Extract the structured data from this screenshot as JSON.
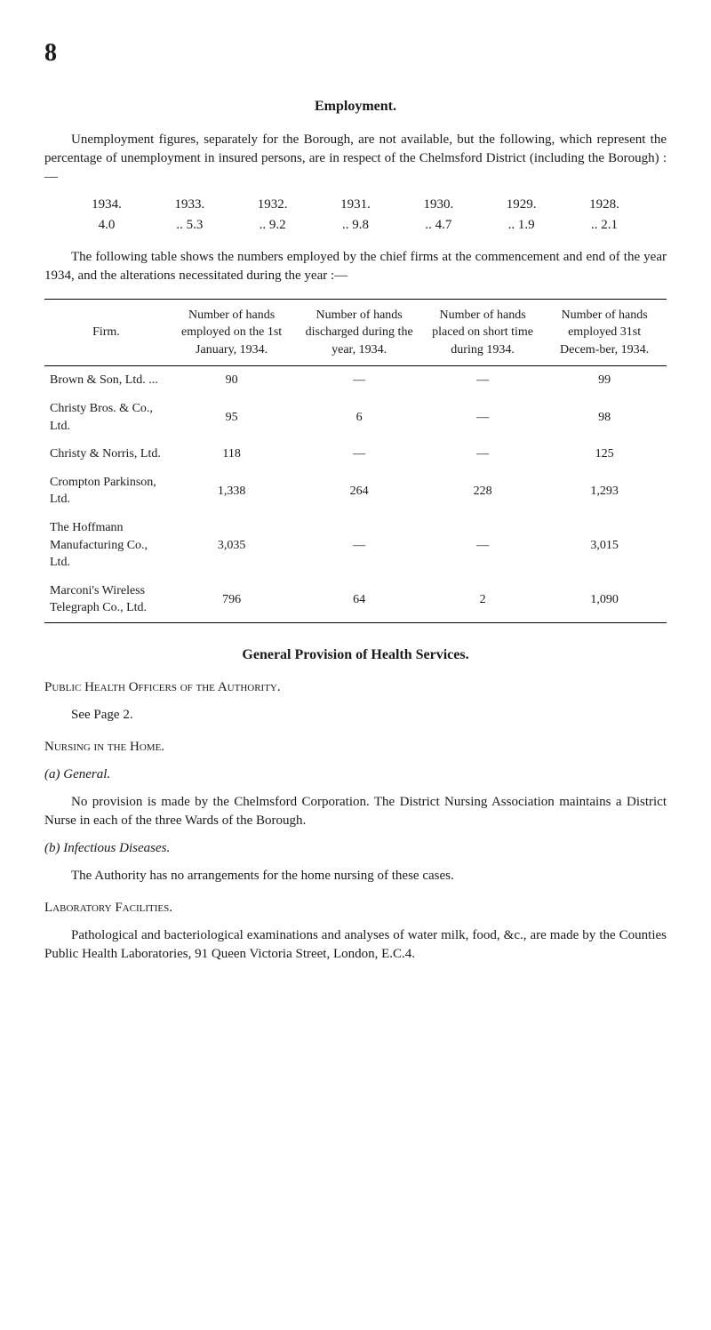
{
  "pageNumber": "8",
  "employment": {
    "title": "Employment.",
    "intro": "Unemployment figures, separately for the Borough, are not available, but the following, which represent the percentage of unemployment in insured persons, are in respect of the Chelmsford District (including the Borough) :—",
    "years": [
      "1934.",
      "1933.",
      "1932.",
      "1931.",
      "1930.",
      "1929.",
      "1928."
    ],
    "values": [
      "4.0",
      ".. 5.3",
      ".. 9.2",
      ".. 9.8",
      ".. 4.7",
      ".. 1.9",
      ".. 2.1"
    ],
    "tableIntro": "The following table shows the numbers employed by the chief firms at the commencement and end of the year 1934, and the alterations necessitated during the year :—",
    "table": {
      "headers": [
        "Firm.",
        "Number of hands employed on the 1st January, 1934.",
        "Number of hands discharged during the year, 1934.",
        "Number of hands placed on short time during 1934.",
        "Number of hands employed 31st Decem-ber, 1934."
      ],
      "rows": [
        [
          "Brown & Son, Ltd. ...",
          "90",
          "—",
          "—",
          "99"
        ],
        [
          "Christy Bros. & Co., Ltd.",
          "95",
          "6",
          "—",
          "98"
        ],
        [
          "Christy & Norris, Ltd.",
          "118",
          "—",
          "—",
          "125"
        ],
        [
          "Crompton Parkinson, Ltd.",
          "1,338",
          "264",
          "228",
          "1,293"
        ],
        [
          "The Hoffmann Manufacturing Co., Ltd.",
          "3,035",
          "—",
          "—",
          "3,015"
        ],
        [
          "Marconi's Wireless Telegraph Co., Ltd.",
          "796",
          "64",
          "2",
          "1,090"
        ]
      ]
    }
  },
  "healthServices": {
    "title": "General Provision of Health Services.",
    "publicHealth": {
      "heading": "Public Health Officers of the Authority.",
      "text": "See Page 2."
    },
    "nursing": {
      "heading": "Nursing in the Home.",
      "general": {
        "label": "(a) General.",
        "text": "No provision is made by the Chelmsford Corporation. The District Nursing Association maintains a District Nurse in each of the three Wards of the Borough."
      },
      "infectious": {
        "label": "(b) Infectious Diseases.",
        "text": "The Authority has no arrangements for the home nursing of these cases."
      }
    },
    "laboratory": {
      "heading": "Laboratory Facilities.",
      "text": "Pathological and bacteriological examinations and analyses of water milk, food, &c., are made by the Counties Public Health Laboratories, 91 Queen Victoria Street, London, E.C.4."
    }
  }
}
